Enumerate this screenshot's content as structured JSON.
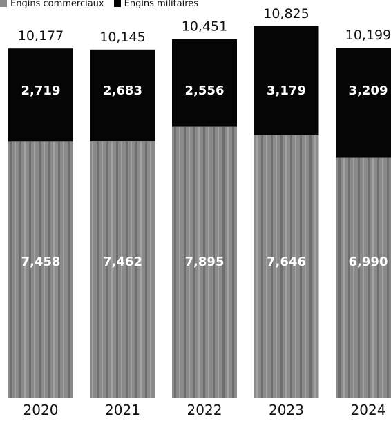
{
  "chart_data": {
    "type": "bar",
    "stacked": true,
    "categories": [
      "2020",
      "2021",
      "2022",
      "2023",
      "2024"
    ],
    "series": [
      {
        "name": "Engins commerciaux",
        "values": [
          7458,
          7462,
          7895,
          7646,
          6990
        ]
      },
      {
        "name": "Engins militaires",
        "values": [
          2719,
          2683,
          2556,
          3179,
          3209
        ]
      }
    ],
    "totals": [
      10177,
      10145,
      10451,
      10825,
      10199
    ],
    "title": "",
    "xlabel": "",
    "ylabel": "",
    "grid": false,
    "legend_position": "top-left",
    "colors": {
      "lower": "#8a8a8a",
      "upper": "#050505",
      "total_label": "#111111",
      "inner_label": "#ffffff",
      "category_label": "#111111"
    }
  }
}
